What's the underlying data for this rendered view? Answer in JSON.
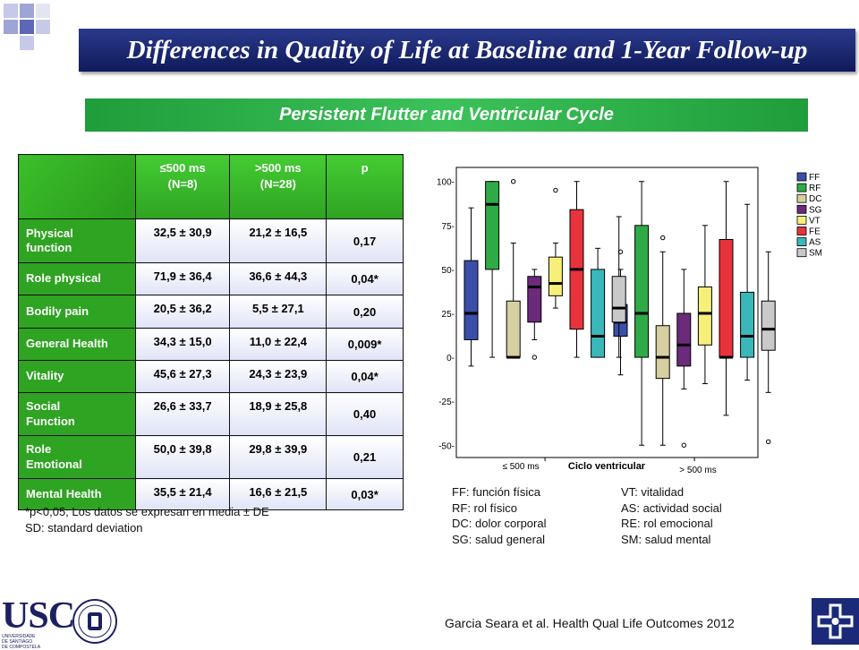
{
  "slide": {
    "title": "Differences in Quality of Life at Baseline and 1-Year Follow-up",
    "subtitle": "Persistent Flutter and Ventricular Cycle",
    "citation": "Garcia Seara et al. Health Qual Life Outcomes 2012",
    "logo_text": "USC",
    "logo_subtext_1": "UNIVERSIDADE",
    "logo_subtext_2": "DE SANTIAGO",
    "logo_subtext_3": "DE COMPOSTELA",
    "colors": {
      "title_bg": "#1a2a78",
      "accent_green": "#2fa322",
      "title_text": "#ffffff"
    }
  },
  "table": {
    "headers": [
      "",
      "≤500 ms",
      "(N=8)",
      ">500 ms",
      "(N=28)",
      "p"
    ],
    "rows": [
      {
        "label": [
          "Physical",
          "function"
        ],
        "a": "32,5 ± 30,9",
        "b": "21,2 ± 16,5",
        "p": "0,17"
      },
      {
        "label": [
          "Role physical"
        ],
        "a": "71,9 ± 36,4",
        "b": "36,6 ± 44,3",
        "p": "0,04*"
      },
      {
        "label": [
          "Bodily pain"
        ],
        "a": "20,5 ± 36,2",
        "b": "5,5 ± 27,1",
        "p": "0,20"
      },
      {
        "label": [
          "General Health"
        ],
        "a": "34,3 ± 15,0",
        "b": "11,0 ± 22,4",
        "p": "0,009*"
      },
      {
        "label": [
          "Vitality"
        ],
        "a": "45,6 ± 27,3",
        "b": "24,3 ± 23,9",
        "p": "0,04*"
      },
      {
        "label": [
          "Social",
          "Function"
        ],
        "a": "26,6 ± 33,7",
        "b": "18,9 ± 25,8",
        "p": "0,40"
      },
      {
        "label": [
          "Role",
          "Emotional"
        ],
        "a": "50,0 ± 39,8",
        "b": "29,8 ± 39,9",
        "p": "0,21"
      },
      {
        "label": [
          "Mental Health"
        ],
        "a": "35,5 ± 21,4",
        "b": "16,6 ± 21,5",
        "p": "0,03*"
      }
    ],
    "notes": [
      "*p<0,05; Los datos se expresan en media ± DE",
      "SD: standard deviation"
    ]
  },
  "abbreviations": {
    "left": [
      "FF: función física",
      "RF: rol físico",
      "DC: dolor corporal",
      "SG: salud general"
    ],
    "right": [
      "VT: vitalidad",
      "AS: actividad social",
      "RE: rol emocional",
      "SM: salud mental"
    ]
  },
  "chart_data": {
    "type": "box",
    "xlabel": "Ciclo ventricular",
    "groups": [
      "≤ 500 ms",
      "> 500 ms"
    ],
    "y_ticks": [
      100,
      75,
      50,
      25,
      0,
      -25,
      -50
    ],
    "y_tick_labels": [
      "100-",
      "75-",
      "50-",
      "25-",
      "0-",
      "-25-",
      "-50-"
    ],
    "ylim": [
      -57,
      108
    ],
    "legend_position": "right",
    "series": [
      {
        "name": "FF",
        "color": "#3b4fa8",
        "groups": [
          {
            "min": -5,
            "q1": 10,
            "median": 25,
            "q3": 55,
            "max": 85,
            "outliers": []
          },
          {
            "min": -10,
            "q1": 12,
            "median": 20,
            "q3": 30,
            "max": 50,
            "outliers": [
              60
            ]
          }
        ]
      },
      {
        "name": "RF",
        "color": "#2eab47",
        "groups": [
          {
            "min": 0,
            "q1": 50,
            "median": 87,
            "q3": 100,
            "max": 100,
            "outliers": []
          },
          {
            "min": -50,
            "q1": 0,
            "median": 25,
            "q3": 75,
            "max": 100,
            "outliers": []
          }
        ]
      },
      {
        "name": "DC",
        "color": "#d6cfa2",
        "groups": [
          {
            "min": 0,
            "q1": 0,
            "median": 0,
            "q3": 32,
            "max": 65,
            "outliers": [
              100
            ]
          },
          {
            "min": -50,
            "q1": -12,
            "median": 0,
            "q3": 18,
            "max": 60,
            "outliers": [
              68
            ]
          }
        ]
      },
      {
        "name": "SG",
        "color": "#6b2a7a",
        "groups": [
          {
            "min": 10,
            "q1": 20,
            "median": 40,
            "q3": 46,
            "max": 50,
            "outliers": [
              0
            ]
          },
          {
            "min": -18,
            "q1": -5,
            "median": 7,
            "q3": 25,
            "max": 50,
            "outliers": [
              -50
            ]
          }
        ]
      },
      {
        "name": "VT",
        "color": "#f6f07a",
        "groups": [
          {
            "min": 28,
            "q1": 35,
            "median": 42,
            "q3": 57,
            "max": 65,
            "outliers": [
              95
            ]
          },
          {
            "min": -15,
            "q1": 7,
            "median": 25,
            "q3": 40,
            "max": 75,
            "outliers": []
          }
        ]
      },
      {
        "name": "FE",
        "color": "#e8323c",
        "groups": [
          {
            "min": 0,
            "q1": 16,
            "median": 50,
            "q3": 84,
            "max": 100,
            "outliers": []
          },
          {
            "min": -33,
            "q1": 0,
            "median": 0,
            "q3": 67,
            "max": 100,
            "outliers": []
          }
        ]
      },
      {
        "name": "AS",
        "color": "#3ab7b9",
        "groups": [
          {
            "min": 0,
            "q1": 0,
            "median": 12,
            "q3": 50,
            "max": 62,
            "outliers": []
          },
          {
            "min": -13,
            "q1": 0,
            "median": 12,
            "q3": 37,
            "max": 87,
            "outliers": []
          }
        ]
      },
      {
        "name": "SM",
        "color": "#c9c9c9",
        "groups": [
          {
            "min": 0,
            "q1": 20,
            "median": 28,
            "q3": 46,
            "max": 80,
            "outliers": []
          },
          {
            "min": -20,
            "q1": 4,
            "median": 16,
            "q3": 32,
            "max": 60,
            "outliers": [
              -48
            ]
          }
        ]
      }
    ]
  }
}
